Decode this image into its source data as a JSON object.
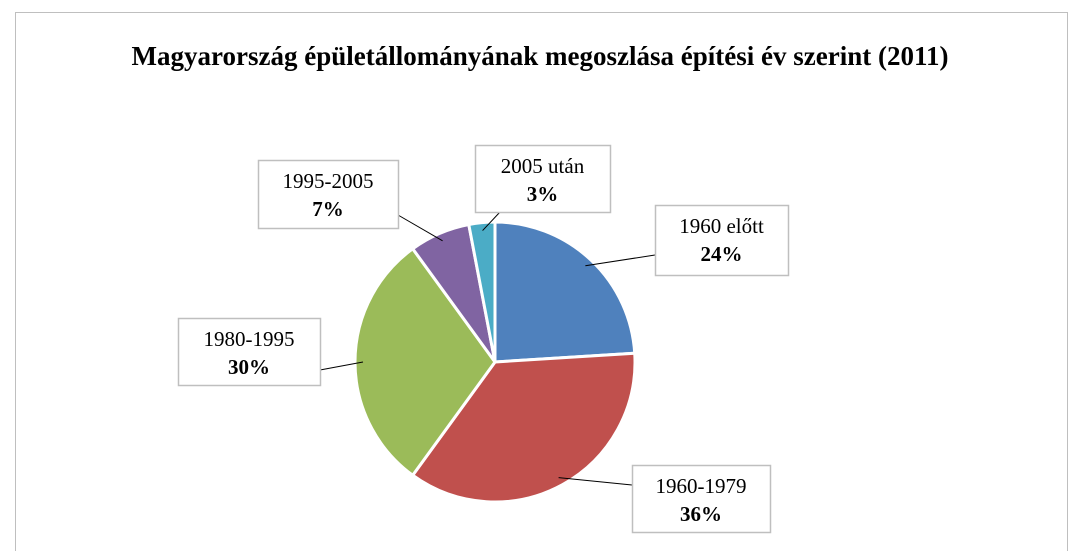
{
  "chart_data": {
    "type": "pie",
    "title": "Magyarország épületállományának megoszlása építési év szerint (2011)",
    "categories": [
      "1960 előtt",
      "1960-1979",
      "1980-1995",
      "1995-2005",
      "2005 után"
    ],
    "values": [
      24,
      36,
      30,
      7,
      3
    ],
    "value_labels": [
      "24%",
      "36%",
      "30%",
      "7%",
      "3%"
    ],
    "colors": [
      "#4f81bd",
      "#c0504d",
      "#9bbb59",
      "#8064a2",
      "#4bacc6"
    ]
  }
}
